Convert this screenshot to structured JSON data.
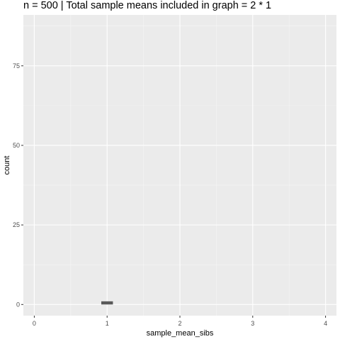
{
  "chart_data": {
    "type": "bar",
    "title": "n = 500 | Total sample means included in graph = 2 * 1",
    "xlabel": "sample_mean_sibs",
    "ylabel": "count",
    "xlim": [
      -0.15,
      4.15
    ],
    "ylim": [
      -3.5,
      91
    ],
    "x_ticks": [
      0,
      1,
      2,
      3,
      4
    ],
    "x_tick_labels": [
      "0",
      "1",
      "2",
      "3",
      "4"
    ],
    "y_ticks": [
      0,
      25,
      50,
      75
    ],
    "y_tick_labels": [
      "0",
      "25",
      "50",
      "75"
    ],
    "grid": true,
    "legend": "none",
    "bars": [
      {
        "x_start": 0.92,
        "x_end": 1.08,
        "count": 1
      }
    ],
    "colors": {
      "panel": "#ebebeb",
      "grid_major": "#ffffff",
      "grid_minor": "#f5f5f5",
      "bar": "#595959"
    }
  }
}
